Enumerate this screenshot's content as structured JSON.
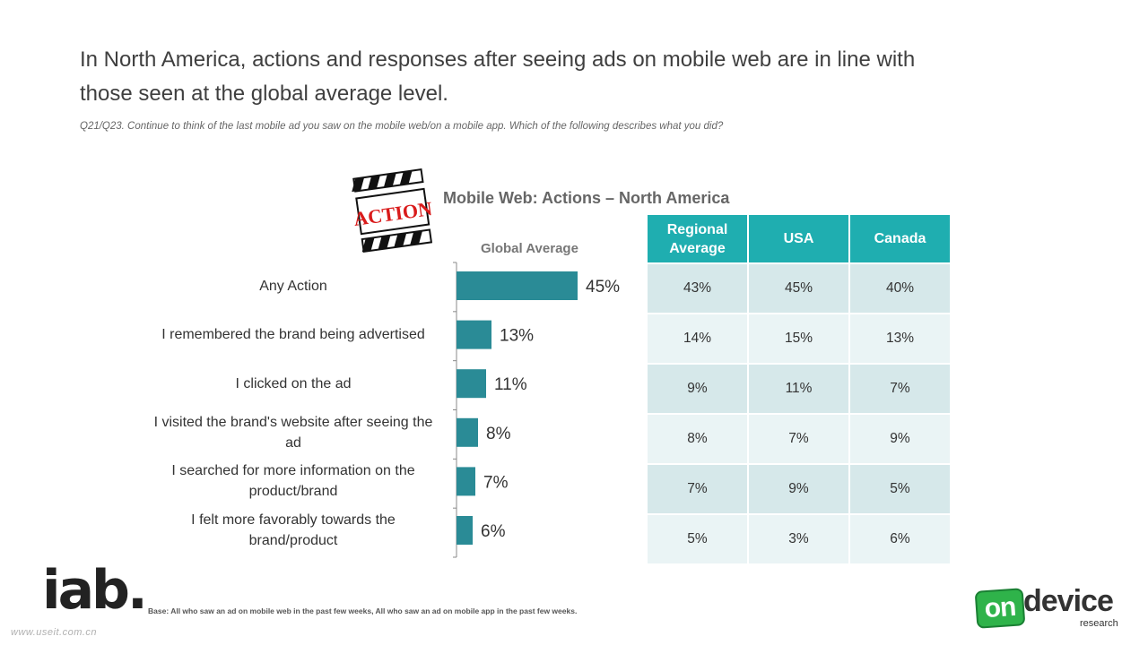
{
  "header": {
    "title": "In North America, actions and responses after seeing ads on mobile web are in line with those seen at the global average level.",
    "subtitle": "Q21/Q23. Continue to think of the last mobile ad you saw on the mobile web/on a mobile app. Which of the following describes what you did?"
  },
  "chart_title": "Mobile Web: Actions –  North America",
  "clapper_text": "ACTION",
  "chart_data": {
    "type": "bar",
    "orientation": "horizontal",
    "series_label": "Global Average",
    "categories": [
      "Any Action",
      "I remembered the brand being advertised",
      "I clicked on the ad",
      "I visited the brand's website after seeing the ad",
      "I searched for more information on the product/brand",
      "I felt more favorably towards the brand/product"
    ],
    "values": [
      45,
      13,
      11,
      8,
      7,
      6
    ],
    "value_labels": [
      "45%",
      "13%",
      "11%",
      "8%",
      "7%",
      "6%"
    ],
    "bar_color": "#2a8b96",
    "xlim": [
      0,
      45
    ]
  },
  "table": {
    "headers": [
      "Regional Average",
      "USA",
      "Canada"
    ],
    "rows": [
      [
        "43%",
        "45%",
        "40%"
      ],
      [
        "14%",
        "15%",
        "13%"
      ],
      [
        "9%",
        "11%",
        "7%"
      ],
      [
        "8%",
        "7%",
        "9%"
      ],
      [
        "7%",
        "9%",
        "5%"
      ],
      [
        "5%",
        "3%",
        "6%"
      ]
    ],
    "header_color": "#1faeb0"
  },
  "footer": {
    "base": "Base: All who saw an ad on mobile web in the past few weeks, All who saw an ad on mobile app in the past few weeks.",
    "iab_logo": "iab.",
    "watermark": "www.useit.com.cn",
    "ondevice_on": "on",
    "ondevice_device": "device",
    "ondevice_research": "research"
  }
}
